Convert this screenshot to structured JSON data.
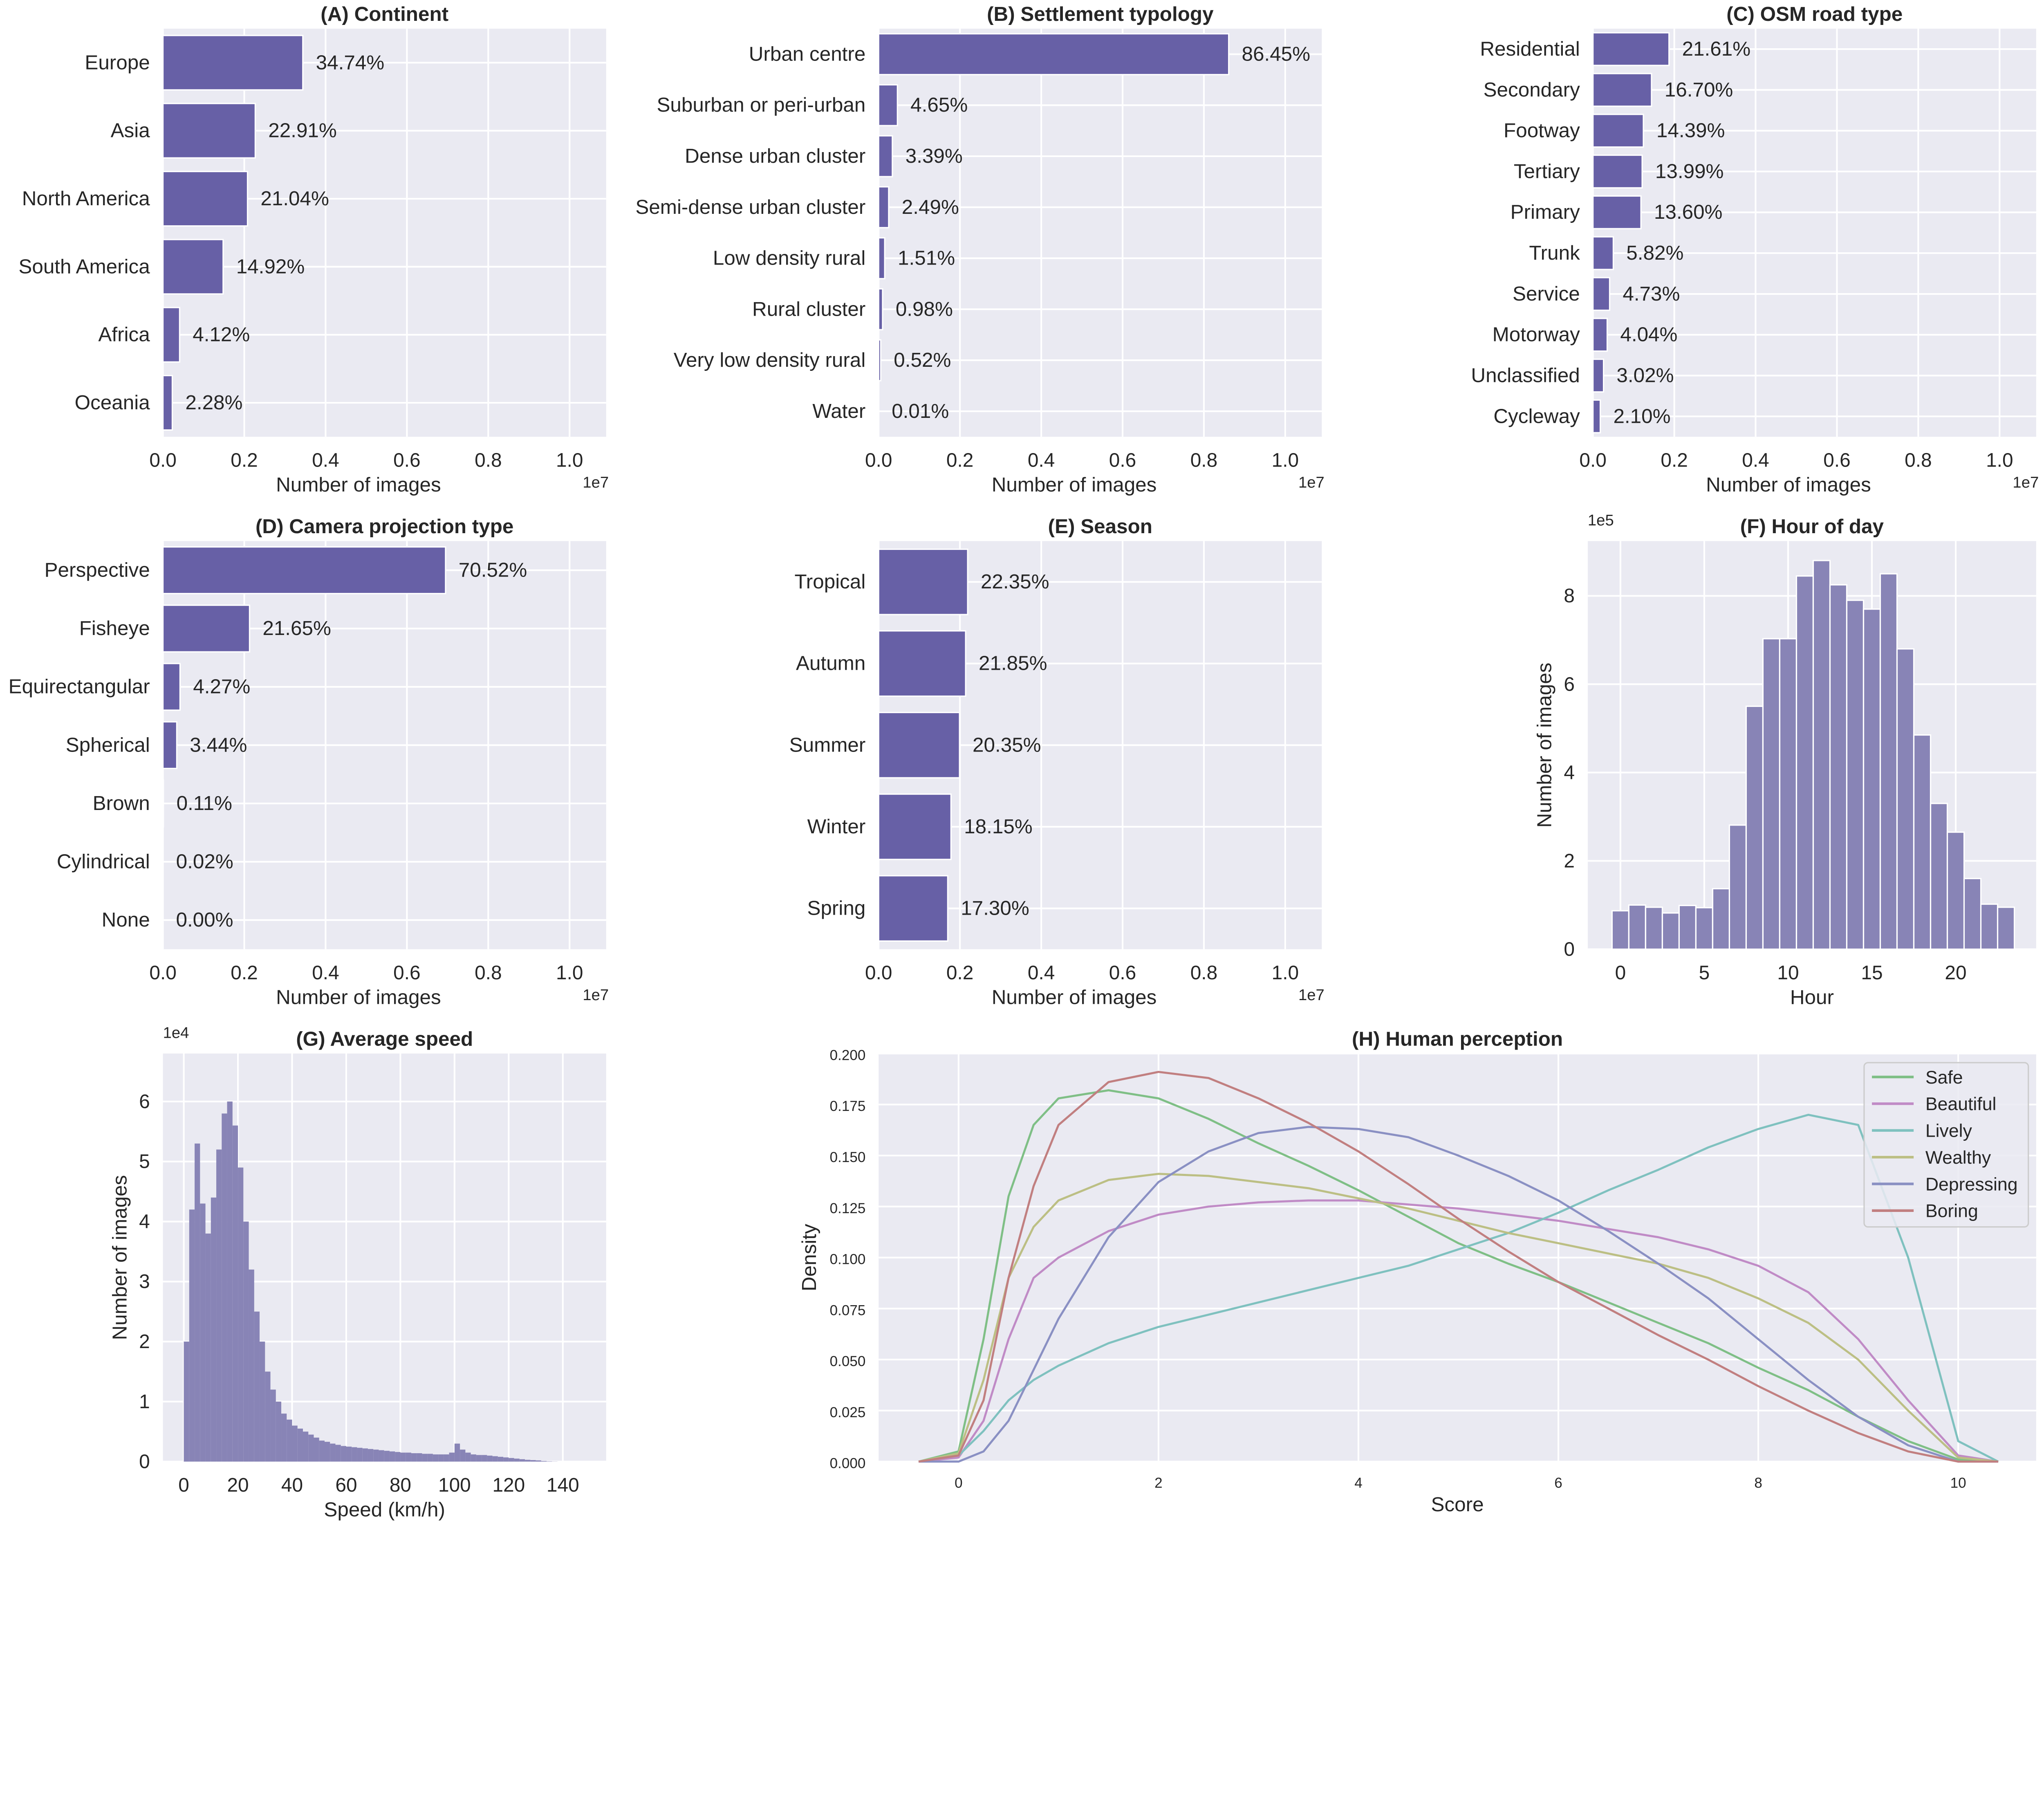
{
  "chart_data": [
    {
      "type": "bar",
      "orientation": "horizontal",
      "title": "(A) Continent",
      "xlabel": "Number of images",
      "x_offset_label": "1e7",
      "xlim": [
        0,
        10900000
      ],
      "xticks": [
        "0.0",
        "0.2",
        "0.4",
        "0.6",
        "0.8",
        "1.0"
      ],
      "categories": [
        "Europe",
        "Asia",
        "North America",
        "South America",
        "Africa",
        "Oceania"
      ],
      "values": [
        3440000,
        2270000,
        2080000,
        1480000,
        410000,
        230000
      ],
      "labels": [
        "34.74%",
        "22.91%",
        "21.04%",
        "14.92%",
        "4.12%",
        "2.28%"
      ],
      "color": "#6760a6",
      "grid": true
    },
    {
      "type": "bar",
      "orientation": "horizontal",
      "title": "(B) Settlement typology",
      "xlabel": "Number of images",
      "x_offset_label": "1e7",
      "xlim": [
        0,
        10900000
      ],
      "xticks": [
        "0.0",
        "0.2",
        "0.4",
        "0.6",
        "0.8",
        "1.0"
      ],
      "categories": [
        "Urban centre",
        "Suburban or peri-urban",
        "Dense urban cluster",
        "Semi-dense urban cluster",
        "Low density rural",
        "Rural cluster",
        "Very low density rural",
        "Water"
      ],
      "values": [
        8610000,
        463000,
        338000,
        248000,
        150000,
        98000,
        52000,
        1000
      ],
      "labels": [
        "86.45%",
        "4.65%",
        "3.39%",
        "2.49%",
        "1.51%",
        "0.98%",
        "0.52%",
        "0.01%"
      ],
      "color": "#6760a6",
      "grid": true
    },
    {
      "type": "bar",
      "orientation": "horizontal",
      "title": "(C) OSM road type",
      "xlabel": "Number of images",
      "x_offset_label": "1e7",
      "xlim": [
        0,
        10900000
      ],
      "xticks": [
        "0.0",
        "0.2",
        "0.4",
        "0.6",
        "0.8",
        "1.0"
      ],
      "categories": [
        "Residential",
        "Secondary",
        "Footway",
        "Tertiary",
        "Primary",
        "Trunk",
        "Service",
        "Motorway",
        "Unclassified",
        "Cycleway"
      ],
      "values": [
        1870000,
        1440000,
        1240000,
        1210000,
        1180000,
        500000,
        410000,
        350000,
        260000,
        180000
      ],
      "labels": [
        "21.61%",
        "16.70%",
        "14.39%",
        "13.99%",
        "13.60%",
        "5.82%",
        "4.73%",
        "4.04%",
        "3.02%",
        "2.10%"
      ],
      "color": "#6760a6",
      "grid": true
    },
    {
      "type": "bar",
      "orientation": "horizontal",
      "title": "(D) Camera projection type",
      "xlabel": "Number of images",
      "x_offset_label": "1e7",
      "xlim": [
        0,
        10900000
      ],
      "xticks": [
        "0.0",
        "0.2",
        "0.4",
        "0.6",
        "0.8",
        "1.0"
      ],
      "categories": [
        "Perspective",
        "Fisheye",
        "Equirectangular",
        "Spherical",
        "Brown",
        "Cylindrical",
        "None"
      ],
      "values": [
        6950000,
        2130000,
        420000,
        340000,
        11000,
        2000,
        0
      ],
      "labels": [
        "70.52%",
        "21.65%",
        "4.27%",
        "3.44%",
        "0.11%",
        "0.02%",
        "0.00%"
      ],
      "color": "#6760a6",
      "grid": true
    },
    {
      "type": "bar",
      "orientation": "horizontal",
      "title": "(E) Season",
      "xlabel": "Number of images",
      "x_offset_label": "1e7",
      "xlim": [
        0,
        10900000
      ],
      "xticks": [
        "0.0",
        "0.2",
        "0.4",
        "0.6",
        "0.8",
        "1.0"
      ],
      "categories": [
        "Tropical",
        "Autumn",
        "Summer",
        "Winter",
        "Spring"
      ],
      "values": [
        2190000,
        2140000,
        1990000,
        1780000,
        1700000
      ],
      "labels": [
        "22.35%",
        "21.85%",
        "20.35%",
        "18.15%",
        "17.30%"
      ],
      "color": "#6760a6",
      "grid": true
    },
    {
      "type": "bar",
      "subtype": "histogram",
      "title": "(F) Hour of day",
      "xlabel": "Hour",
      "ylabel": "Number of images",
      "y_offset_label": "1e5",
      "xlim": [
        -1.95,
        24.8
      ],
      "ylim": [
        0,
        924000
      ],
      "xticks": [
        0,
        5,
        10,
        15,
        20
      ],
      "yticks": [
        0,
        2,
        4,
        6,
        8
      ],
      "x": [
        0,
        1,
        2,
        3,
        4,
        5,
        6,
        7,
        8,
        9,
        10,
        11,
        12,
        13,
        14,
        15,
        16,
        17,
        18,
        19,
        20,
        21,
        22,
        23
      ],
      "values": [
        87000,
        100000,
        95000,
        82000,
        99000,
        94000,
        137000,
        281000,
        550000,
        703000,
        703000,
        845000,
        880000,
        825000,
        790000,
        770000,
        850000,
        680000,
        485000,
        330000,
        265000,
        160000,
        102000,
        95000
      ],
      "color": "#8884b6",
      "grid": true
    },
    {
      "type": "bar",
      "subtype": "histogram",
      "title": "(G) Average speed",
      "xlabel": "Speed (km/h)",
      "ylabel": "Number of images",
      "y_offset_label": "1e4",
      "xlim": [
        -7.7,
        156
      ],
      "ylim": [
        0,
        68000
      ],
      "xticks": [
        0,
        20,
        40,
        60,
        80,
        100,
        120,
        140
      ],
      "yticks": [
        0,
        1,
        2,
        3,
        4,
        5,
        6
      ],
      "bin_width": 2,
      "x": [
        0,
        2,
        4,
        6,
        8,
        10,
        12,
        14,
        16,
        18,
        20,
        22,
        24,
        26,
        28,
        30,
        32,
        34,
        36,
        38,
        40,
        42,
        44,
        46,
        48,
        50,
        52,
        54,
        56,
        58,
        60,
        62,
        64,
        66,
        68,
        70,
        72,
        74,
        76,
        78,
        80,
        82,
        84,
        86,
        88,
        90,
        92,
        94,
        96,
        98,
        100,
        102,
        104,
        106,
        108,
        110,
        112,
        114,
        116,
        118,
        120,
        122,
        124,
        126,
        128,
        130,
        132,
        134,
        136,
        138
      ],
      "values": [
        20000,
        42000,
        53000,
        43000,
        38000,
        44000,
        52000,
        58000,
        60000,
        56000,
        49000,
        40000,
        32000,
        25000,
        20000,
        15000,
        12000,
        10000,
        8000,
        7000,
        6000,
        5500,
        5000,
        4500,
        4000,
        3500,
        3300,
        3000,
        2800,
        2600,
        2500,
        2400,
        2300,
        2200,
        2100,
        2000,
        1900,
        1800,
        1700,
        1600,
        1500,
        1500,
        1400,
        1400,
        1300,
        1300,
        1200,
        1200,
        1200,
        1500,
        3000,
        2000,
        1500,
        1200,
        1100,
        1100,
        1000,
        900,
        800,
        700,
        600,
        500,
        400,
        300,
        250,
        200,
        100,
        50,
        20,
        0
      ],
      "color": "#8884b6",
      "grid": true
    },
    {
      "type": "line",
      "subtype": "kde",
      "title": "(H) Human perception",
      "xlabel": "Score",
      "ylabel": "Density",
      "xlim": [
        -0.8,
        10.78
      ],
      "ylim": [
        0,
        0.2
      ],
      "xticks": [
        0,
        2,
        4,
        6,
        8,
        10
      ],
      "yticks": [
        "0.000",
        "0.025",
        "0.050",
        "0.075",
        "0.100",
        "0.125",
        "0.150",
        "0.175",
        "0.200"
      ],
      "legend": "top-right",
      "grid": true,
      "x": [
        -0.4,
        0,
        0.25,
        0.5,
        0.75,
        1,
        1.5,
        2,
        2.5,
        3,
        3.5,
        4,
        4.5,
        5,
        5.5,
        6,
        6.5,
        7,
        7.5,
        8,
        8.5,
        9,
        9.5,
        10,
        10.4
      ],
      "series": [
        {
          "name": "Safe",
          "color": "#7fbf86",
          "values": [
            0,
            0.005,
            0.06,
            0.13,
            0.165,
            0.178,
            0.182,
            0.178,
            0.168,
            0.156,
            0.145,
            0.133,
            0.12,
            0.107,
            0.097,
            0.088,
            0.078,
            0.068,
            0.058,
            0.046,
            0.035,
            0.022,
            0.01,
            0.001,
            0
          ]
        },
        {
          "name": "Beautiful",
          "color": "#c08bc6",
          "values": [
            0,
            0.002,
            0.02,
            0.06,
            0.09,
            0.1,
            0.113,
            0.121,
            0.125,
            0.127,
            0.128,
            0.128,
            0.126,
            0.124,
            0.121,
            0.118,
            0.114,
            0.11,
            0.104,
            0.096,
            0.083,
            0.06,
            0.03,
            0.003,
            0
          ]
        },
        {
          "name": "Lively",
          "color": "#7fc1bf",
          "values": [
            0,
            0.003,
            0.015,
            0.03,
            0.04,
            0.047,
            0.058,
            0.066,
            0.072,
            0.078,
            0.084,
            0.09,
            0.096,
            0.104,
            0.112,
            0.122,
            0.133,
            0.143,
            0.154,
            0.163,
            0.17,
            0.165,
            0.1,
            0.01,
            0
          ]
        },
        {
          "name": "Wealthy",
          "color": "#bcbf84",
          "values": [
            0,
            0.004,
            0.04,
            0.09,
            0.115,
            0.128,
            0.138,
            0.141,
            0.14,
            0.137,
            0.134,
            0.129,
            0.124,
            0.118,
            0.112,
            0.107,
            0.102,
            0.097,
            0.09,
            0.08,
            0.068,
            0.05,
            0.025,
            0.002,
            0
          ]
        },
        {
          "name": "Depressing",
          "color": "#8a90c3",
          "values": [
            0,
            0,
            0.005,
            0.02,
            0.045,
            0.07,
            0.11,
            0.137,
            0.152,
            0.161,
            0.164,
            0.163,
            0.159,
            0.15,
            0.14,
            0.128,
            0.113,
            0.097,
            0.08,
            0.06,
            0.04,
            0.022,
            0.008,
            0,
            0
          ]
        },
        {
          "name": "Boring",
          "color": "#c17f80",
          "values": [
            0,
            0.003,
            0.03,
            0.09,
            0.135,
            0.165,
            0.186,
            0.191,
            0.188,
            0.178,
            0.166,
            0.152,
            0.136,
            0.119,
            0.103,
            0.088,
            0.075,
            0.062,
            0.05,
            0.037,
            0.025,
            0.014,
            0.005,
            0,
            0
          ]
        }
      ]
    }
  ]
}
